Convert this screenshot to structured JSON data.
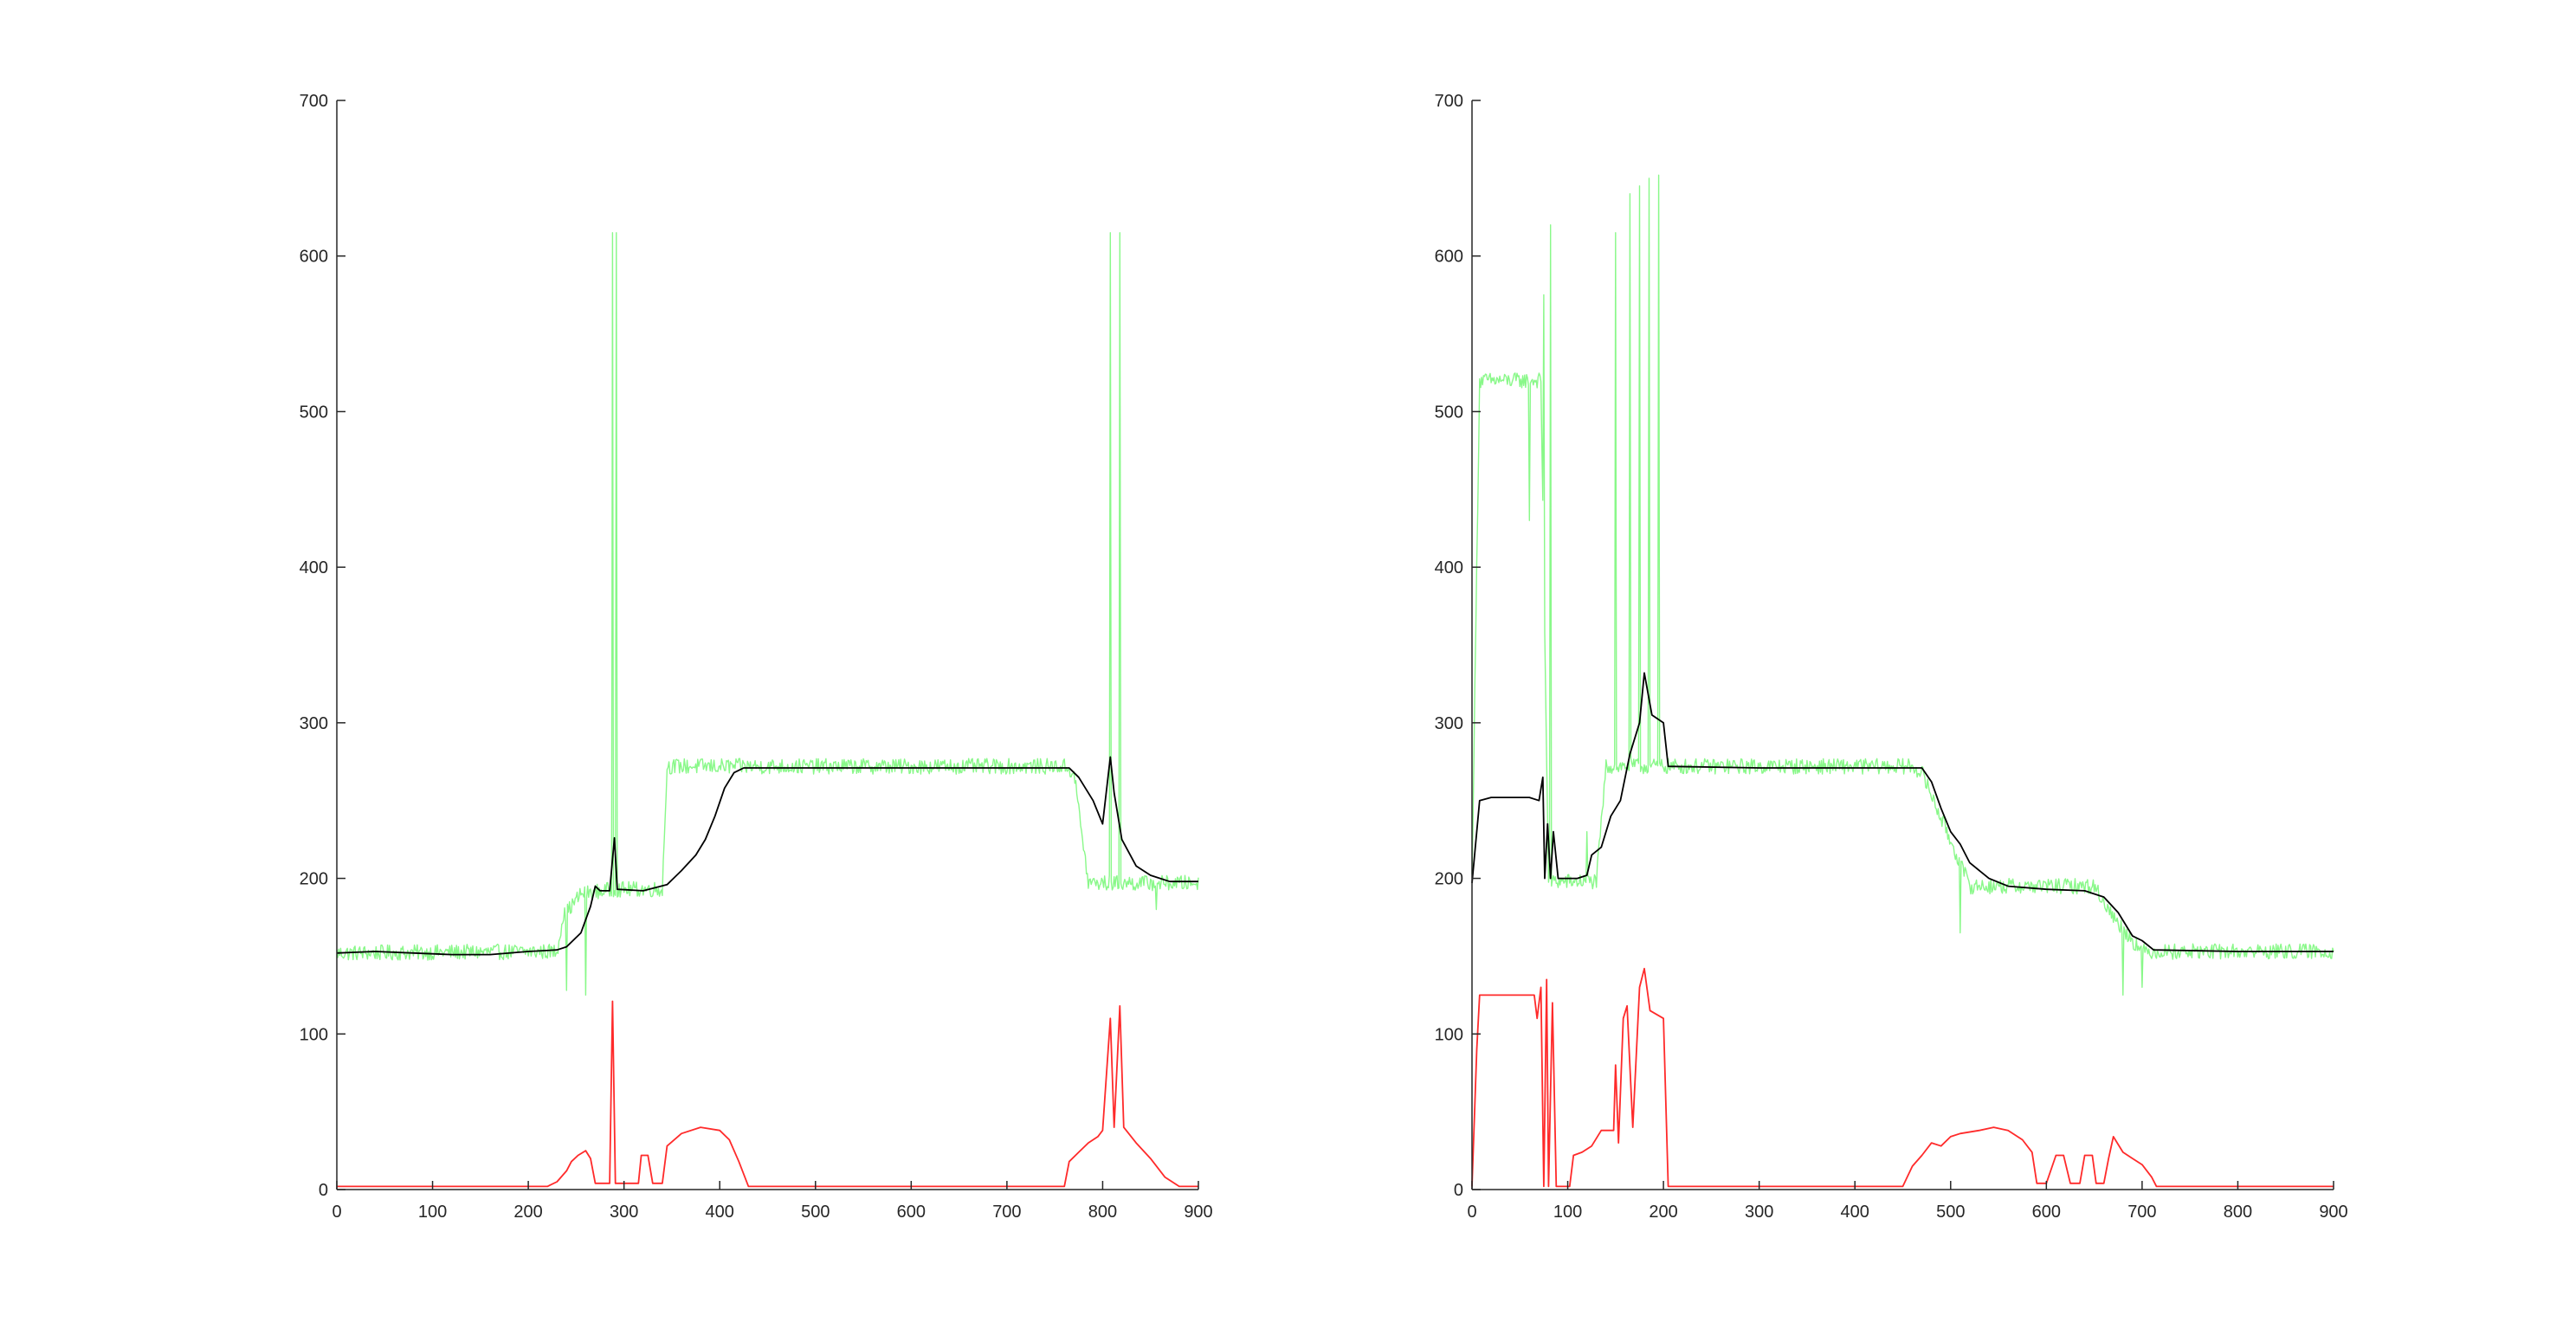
{
  "chart_data": [
    {
      "type": "line",
      "xlim": [
        0,
        900
      ],
      "ylim": [
        0,
        700
      ],
      "x_ticks": [
        "0",
        "100",
        "200",
        "300",
        "400",
        "500",
        "600",
        "700",
        "800",
        "900"
      ],
      "y_ticks": [
        "0",
        "100",
        "200",
        "300",
        "400",
        "500",
        "600",
        "700"
      ],
      "grid": false,
      "box": false,
      "series": [
        {
          "role": "raw",
          "color": "#7CF77C",
          "base": [
            [
              0,
              152
            ],
            [
              230,
              153
            ],
            [
              236,
              175
            ],
            [
              255,
              190
            ],
            [
              290,
              193
            ],
            [
              340,
              193
            ],
            [
              345,
              272
            ],
            [
              760,
              272
            ],
            [
              770,
              268
            ],
            [
              785,
              197
            ],
            [
              900,
              197
            ]
          ],
          "noise": 5,
          "spikes": [
            [
              288,
              615
            ],
            [
              292,
              615
            ],
            [
              808,
              615
            ],
            [
              818,
              615
            ],
            [
              260,
              125
            ],
            [
              240,
              128
            ],
            [
              856,
              180
            ]
          ]
        },
        {
          "role": "estimate",
          "color": "#000000",
          "points": [
            [
              0,
              152
            ],
            [
              40,
              153
            ],
            [
              80,
              152
            ],
            [
              120,
              151
            ],
            [
              160,
              151
            ],
            [
              200,
              153
            ],
            [
              230,
              154
            ],
            [
              240,
              156
            ],
            [
              255,
              165
            ],
            [
              265,
              182
            ],
            [
              270,
              195
            ],
            [
              275,
              192
            ],
            [
              285,
              192
            ],
            [
              290,
              226
            ],
            [
              293,
              193
            ],
            [
              320,
              192
            ],
            [
              345,
              196
            ],
            [
              360,
              205
            ],
            [
              375,
              215
            ],
            [
              385,
              225
            ],
            [
              395,
              240
            ],
            [
              405,
              258
            ],
            [
              415,
              268
            ],
            [
              425,
              271
            ],
            [
              500,
              271
            ],
            [
              600,
              271
            ],
            [
              700,
              271
            ],
            [
              765,
              271
            ],
            [
              775,
              265
            ],
            [
              790,
              250
            ],
            [
              800,
              235
            ],
            [
              808,
              278
            ],
            [
              812,
              255
            ],
            [
              820,
              225
            ],
            [
              835,
              208
            ],
            [
              850,
              202
            ],
            [
              870,
              198
            ],
            [
              900,
              198
            ]
          ]
        },
        {
          "role": "deviation",
          "color": "#FF2A2A",
          "points": [
            [
              0,
              2
            ],
            [
              220,
              2
            ],
            [
              230,
              5
            ],
            [
              240,
              12
            ],
            [
              245,
              18
            ],
            [
              252,
              22
            ],
            [
              260,
              25
            ],
            [
              265,
              20
            ],
            [
              270,
              4
            ],
            [
              285,
              4
            ],
            [
              288,
              121
            ],
            [
              291,
              4
            ],
            [
              315,
              4
            ],
            [
              318,
              22
            ],
            [
              325,
              22
            ],
            [
              330,
              4
            ],
            [
              340,
              4
            ],
            [
              345,
              28
            ],
            [
              360,
              36
            ],
            [
              380,
              40
            ],
            [
              400,
              38
            ],
            [
              410,
              32
            ],
            [
              420,
              18
            ],
            [
              430,
              2
            ],
            [
              760,
              2
            ],
            [
              765,
              18
            ],
            [
              775,
              24
            ],
            [
              785,
              30
            ],
            [
              795,
              34
            ],
            [
              800,
              38
            ],
            [
              808,
              110
            ],
            [
              812,
              40
            ],
            [
              818,
              118
            ],
            [
              822,
              40
            ],
            [
              835,
              30
            ],
            [
              850,
              20
            ],
            [
              865,
              8
            ],
            [
              880,
              2
            ],
            [
              900,
              2
            ]
          ]
        }
      ]
    },
    {
      "type": "line",
      "xlim": [
        0,
        900
      ],
      "ylim": [
        0,
        700
      ],
      "x_ticks": [
        "0",
        "100",
        "200",
        "300",
        "400",
        "500",
        "600",
        "700",
        "800",
        "900"
      ],
      "y_ticks": [
        "0",
        "100",
        "200",
        "300",
        "400",
        "500",
        "600",
        "700"
      ],
      "grid": false,
      "box": false,
      "series": [
        {
          "role": "raw",
          "color": "#7CF77C",
          "base": [
            [
              0,
              200
            ],
            [
              8,
              520
            ],
            [
              72,
              520
            ],
            [
              80,
              198
            ],
            [
              130,
              198
            ],
            [
              140,
              272
            ],
            [
              460,
              272
            ],
            [
              470,
              268
            ],
            [
              520,
              195
            ],
            [
              650,
              195
            ],
            [
              670,
              175
            ],
            [
              700,
              153
            ],
            [
              900,
              153
            ]
          ],
          "noise": 5,
          "spikes": [
            [
              60,
              430
            ],
            [
              75,
              575
            ],
            [
              82,
              620
            ],
            [
              150,
              615
            ],
            [
              165,
              640
            ],
            [
              175,
              645
            ],
            [
              185,
              650
            ],
            [
              195,
              652
            ],
            [
              120,
              230
            ],
            [
              680,
              125
            ],
            [
              700,
              130
            ],
            [
              510,
              165
            ]
          ]
        },
        {
          "role": "estimate",
          "color": "#000000",
          "points": [
            [
              0,
              197
            ],
            [
              8,
              250
            ],
            [
              20,
              252
            ],
            [
              40,
              252
            ],
            [
              60,
              252
            ],
            [
              70,
              250
            ],
            [
              74,
              265
            ],
            [
              76,
              200
            ],
            [
              79,
              235
            ],
            [
              82,
              200
            ],
            [
              85,
              230
            ],
            [
              90,
              200
            ],
            [
              110,
              200
            ],
            [
              120,
              202
            ],
            [
              125,
              215
            ],
            [
              135,
              220
            ],
            [
              145,
              240
            ],
            [
              155,
              250
            ],
            [
              165,
              280
            ],
            [
              175,
              300
            ],
            [
              180,
              332
            ],
            [
              188,
              305
            ],
            [
              200,
              300
            ],
            [
              205,
              272
            ],
            [
              300,
              271
            ],
            [
              400,
              271
            ],
            [
              470,
              271
            ],
            [
              480,
              262
            ],
            [
              490,
              245
            ],
            [
              500,
              230
            ],
            [
              510,
              222
            ],
            [
              520,
              210
            ],
            [
              540,
              200
            ],
            [
              560,
              195
            ],
            [
              600,
              193
            ],
            [
              640,
              192
            ],
            [
              660,
              188
            ],
            [
              675,
              178
            ],
            [
              690,
              163
            ],
            [
              700,
              160
            ],
            [
              712,
              154
            ],
            [
              800,
              153
            ],
            [
              900,
              153
            ]
          ]
        },
        {
          "role": "deviation",
          "color": "#FF2A2A",
          "points": [
            [
              0,
              2
            ],
            [
              5,
              90
            ],
            [
              8,
              125
            ],
            [
              40,
              125
            ],
            [
              65,
              125
            ],
            [
              68,
              110
            ],
            [
              72,
              130
            ],
            [
              75,
              2
            ],
            [
              78,
              135
            ],
            [
              80,
              2
            ],
            [
              84,
              120
            ],
            [
              88,
              2
            ],
            [
              102,
              2
            ],
            [
              106,
              22
            ],
            [
              115,
              24
            ],
            [
              125,
              28
            ],
            [
              135,
              38
            ],
            [
              148,
              38
            ],
            [
              150,
              80
            ],
            [
              153,
              30
            ],
            [
              158,
              110
            ],
            [
              162,
              118
            ],
            [
              168,
              40
            ],
            [
              175,
              130
            ],
            [
              180,
              142
            ],
            [
              186,
              115
            ],
            [
              200,
              110
            ],
            [
              205,
              2
            ],
            [
              450,
              2
            ],
            [
              460,
              15
            ],
            [
              470,
              22
            ],
            [
              480,
              30
            ],
            [
              490,
              28
            ],
            [
              500,
              34
            ],
            [
              510,
              36
            ],
            [
              530,
              38
            ],
            [
              545,
              40
            ],
            [
              560,
              38
            ],
            [
              575,
              32
            ],
            [
              585,
              24
            ],
            [
              590,
              4
            ],
            [
              600,
              4
            ],
            [
              610,
              22
            ],
            [
              618,
              22
            ],
            [
              625,
              4
            ],
            [
              635,
              4
            ],
            [
              640,
              22
            ],
            [
              648,
              22
            ],
            [
              652,
              4
            ],
            [
              660,
              4
            ],
            [
              665,
              20
            ],
            [
              670,
              34
            ],
            [
              680,
              24
            ],
            [
              690,
              20
            ],
            [
              700,
              16
            ],
            [
              710,
              8
            ],
            [
              715,
              2
            ],
            [
              900,
              2
            ]
          ]
        }
      ]
    }
  ]
}
